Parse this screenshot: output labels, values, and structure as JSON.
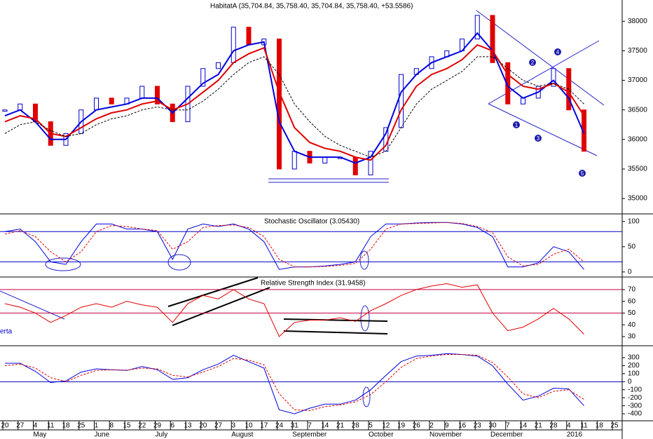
{
  "chart_data": [
    {
      "type": "price-bars",
      "title": "HabitatA (35,704.84, 35,758.40, 35,704.84, 35,758.40, +53.5586)",
      "categories": [
        "20",
        "27",
        "4",
        "11",
        "18",
        "25",
        "1",
        "8",
        "15",
        "22",
        "29",
        "6",
        "13",
        "20",
        "27",
        "3",
        "10",
        "17",
        "24",
        "31",
        "7",
        "14",
        "21",
        "28",
        "5",
        "12",
        "19",
        "26",
        "2",
        "9",
        "16",
        "23",
        "30",
        "7",
        "14",
        "21",
        "28",
        "4",
        "11",
        "18",
        "25"
      ],
      "month_labels": [
        null,
        null,
        "May",
        null,
        null,
        null,
        "June",
        null,
        null,
        null,
        "July",
        null,
        null,
        null,
        null,
        "August",
        null,
        null,
        null,
        "September",
        null,
        null,
        null,
        null,
        "October",
        null,
        null,
        null,
        "November",
        null,
        null,
        null,
        "December",
        null,
        null,
        null,
        null,
        "2016",
        null,
        null,
        null
      ],
      "values": [
        36500,
        36600,
        36300,
        35900,
        36100,
        36500,
        36700,
        36600,
        36700,
        36900,
        36600,
        36300,
        36900,
        37200,
        37300,
        37900,
        37600,
        37700,
        35500,
        35800,
        35600,
        35700,
        35700,
        35400,
        35800,
        36200,
        37100,
        37200,
        37400,
        37500,
        37700,
        38100,
        37300,
        36600,
        36700,
        36900,
        37200,
        36500,
        35800,
        null,
        null
      ],
      "up_color": "#0000cc",
      "down_color": "#e00000",
      "series": [
        {
          "color": "#0000dd",
          "dash": false,
          "values": [
            36400,
            36500,
            36300,
            36000,
            36000,
            36300,
            36500,
            36550,
            36600,
            36700,
            36700,
            36450,
            36700,
            36950,
            37100,
            37500,
            37600,
            37650,
            36300,
            35800,
            35700,
            35700,
            35700,
            35600,
            35700,
            36100,
            36800,
            37100,
            37300,
            37400,
            37500,
            37800,
            37500,
            36900,
            36700,
            36800,
            37000,
            36700,
            36100,
            null,
            null
          ]
        },
        {
          "color": "#e00000",
          "dash": false,
          "values": [
            36300,
            36400,
            36350,
            36100,
            36050,
            36200,
            36350,
            36450,
            36500,
            36600,
            36650,
            36500,
            36600,
            36800,
            37000,
            37300,
            37450,
            37550,
            36800,
            36200,
            35950,
            35850,
            35800,
            35700,
            35650,
            35900,
            36500,
            36900,
            37100,
            37200,
            37350,
            37600,
            37500,
            37100,
            36900,
            36850,
            36950,
            36800,
            36400,
            null,
            null
          ]
        },
        {
          "color": "#000000",
          "dash": true,
          "values": [
            36100,
            36250,
            36300,
            36150,
            36050,
            36100,
            36250,
            36350,
            36400,
            36500,
            36550,
            36500,
            36500,
            36650,
            36850,
            37100,
            37300,
            37400,
            37100,
            36600,
            36300,
            36050,
            35900,
            35800,
            35700,
            35800,
            36200,
            36600,
            36850,
            37000,
            37150,
            37400,
            37400,
            37200,
            37000,
            36900,
            36950,
            36850,
            36600,
            null,
            null
          ]
        }
      ],
      "annotations": [
        "1",
        "2",
        "3",
        "4",
        "5"
      ],
      "ylim": [
        34740,
        38360
      ],
      "yticks": [
        35000,
        35500,
        36000,
        36500,
        37000,
        37500,
        38000
      ]
    },
    {
      "type": "line",
      "title": "Stochastic Oscillator (3.05430)",
      "series": [
        {
          "color": "#0000dd",
          "dash": false,
          "values": [
            80,
            85,
            60,
            20,
            15,
            60,
            95,
            95,
            85,
            85,
            80,
            25,
            85,
            95,
            90,
            95,
            85,
            60,
            5,
            10,
            10,
            12,
            15,
            20,
            70,
            95,
            95,
            97,
            98,
            98,
            95,
            88,
            70,
            10,
            10,
            18,
            50,
            40,
            5,
            null,
            null
          ]
        },
        {
          "color": "#e00000",
          "dash": true,
          "values": [
            75,
            82,
            70,
            40,
            20,
            40,
            80,
            92,
            90,
            85,
            82,
            45,
            60,
            88,
            92,
            93,
            88,
            70,
            25,
            10,
            10,
            11,
            13,
            17,
            45,
            85,
            95,
            96,
            97,
            98,
            96,
            90,
            78,
            30,
            12,
            15,
            35,
            45,
            20,
            null,
            null
          ]
        }
      ],
      "levels": [
        20,
        80
      ],
      "level_color": "#0000cc",
      "ylim": [
        -10,
        115
      ],
      "yticks": [
        0,
        50,
        100
      ]
    },
    {
      "type": "line",
      "title": "Relative Strength Index (31.9458)",
      "note": "erta",
      "series": [
        {
          "color": "#e00000",
          "dash": false,
          "values": [
            58,
            55,
            50,
            42,
            48,
            55,
            58,
            55,
            60,
            57,
            55,
            42,
            58,
            65,
            62,
            70,
            62,
            58,
            30,
            42,
            44,
            44,
            46,
            43,
            52,
            58,
            65,
            70,
            73,
            75,
            72,
            74,
            50,
            35,
            38,
            45,
            54,
            45,
            32,
            null,
            null
          ]
        }
      ],
      "levels": [
        50,
        70
      ],
      "level_color": "#c00040",
      "ylim": [
        22.2,
        80.7
      ],
      "yticks": [
        30,
        40,
        50,
        60,
        70
      ]
    },
    {
      "type": "line",
      "series": [
        {
          "color": "#0000dd",
          "dash": false,
          "values": [
            230,
            230,
            130,
            -10,
            10,
            120,
            160,
            150,
            140,
            190,
            150,
            30,
            50,
            150,
            220,
            330,
            250,
            170,
            -350,
            -400,
            -330,
            -280,
            -280,
            -230,
            -100,
            80,
            250,
            320,
            330,
            350,
            340,
            320,
            200,
            -30,
            -230,
            -180,
            -80,
            -90,
            -300,
            null,
            null
          ]
        },
        {
          "color": "#e00000",
          "dash": true,
          "values": [
            200,
            220,
            170,
            50,
            0,
            80,
            140,
            150,
            145,
            170,
            160,
            80,
            60,
            120,
            190,
            290,
            270,
            210,
            -150,
            -350,
            -360,
            -310,
            -290,
            -250,
            -160,
            0,
            180,
            290,
            320,
            340,
            340,
            330,
            240,
            60,
            -150,
            -200,
            -120,
            -100,
            -220,
            null,
            null
          ]
        }
      ],
      "levels": [
        0
      ],
      "level_color": "#0000cc",
      "ylim": [
        -487,
        449
      ],
      "yticks": [
        -400,
        -300,
        -200,
        -100,
        0,
        100,
        200,
        300
      ]
    }
  ]
}
